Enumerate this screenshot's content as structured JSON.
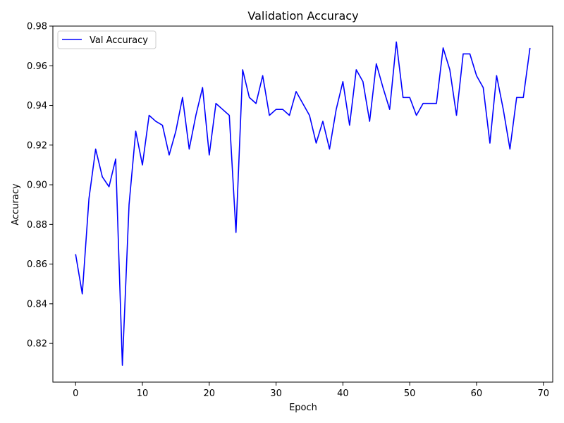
{
  "chart_data": {
    "type": "line",
    "title": "Validation Accuracy",
    "xlabel": "Epoch",
    "ylabel": "Accuracy",
    "xlim": [
      -3.4,
      71.4
    ],
    "ylim": [
      0.8005,
      0.98
    ],
    "xticks": [
      0,
      10,
      20,
      30,
      40,
      50,
      60,
      70
    ],
    "yticks": [
      0.82,
      0.84,
      0.86,
      0.88,
      0.9,
      0.92,
      0.94,
      0.96,
      0.98
    ],
    "ytick_labels": [
      "0.82",
      "0.84",
      "0.86",
      "0.88",
      "0.90",
      "0.92",
      "0.94",
      "0.96",
      "0.98"
    ],
    "grid": false,
    "legend_position": "upper-left",
    "series": [
      {
        "name": "Val Accuracy",
        "color": "#0000ff",
        "x": [
          0,
          1,
          2,
          3,
          4,
          5,
          6,
          7,
          8,
          9,
          10,
          11,
          12,
          13,
          14,
          15,
          16,
          17,
          18,
          19,
          20,
          21,
          22,
          23,
          24,
          25,
          26,
          27,
          28,
          29,
          30,
          31,
          32,
          33,
          34,
          35,
          36,
          37,
          38,
          39,
          40,
          41,
          42,
          43,
          44,
          45,
          46,
          47,
          48,
          49,
          50,
          51,
          52,
          53,
          54,
          55,
          56,
          57,
          58,
          59,
          60,
          61,
          62,
          63,
          64,
          65,
          66,
          67,
          68
        ],
        "values": [
          0.865,
          0.845,
          0.893,
          0.918,
          0.904,
          0.899,
          0.913,
          0.809,
          0.89,
          0.927,
          0.91,
          0.935,
          0.932,
          0.93,
          0.915,
          0.927,
          0.944,
          0.918,
          0.935,
          0.949,
          0.915,
          0.941,
          0.938,
          0.935,
          0.876,
          0.958,
          0.944,
          0.941,
          0.955,
          0.935,
          0.938,
          0.938,
          0.935,
          0.947,
          0.941,
          0.935,
          0.921,
          0.932,
          0.918,
          0.938,
          0.952,
          0.93,
          0.958,
          0.952,
          0.932,
          0.961,
          0.949,
          0.938,
          0.972,
          0.944,
          0.944,
          0.935,
          0.941,
          0.941,
          0.941,
          0.969,
          0.958,
          0.935,
          0.966,
          0.966,
          0.955,
          0.949,
          0.921,
          0.955,
          0.938,
          0.918,
          0.944,
          0.944,
          0.969
        ]
      }
    ]
  }
}
